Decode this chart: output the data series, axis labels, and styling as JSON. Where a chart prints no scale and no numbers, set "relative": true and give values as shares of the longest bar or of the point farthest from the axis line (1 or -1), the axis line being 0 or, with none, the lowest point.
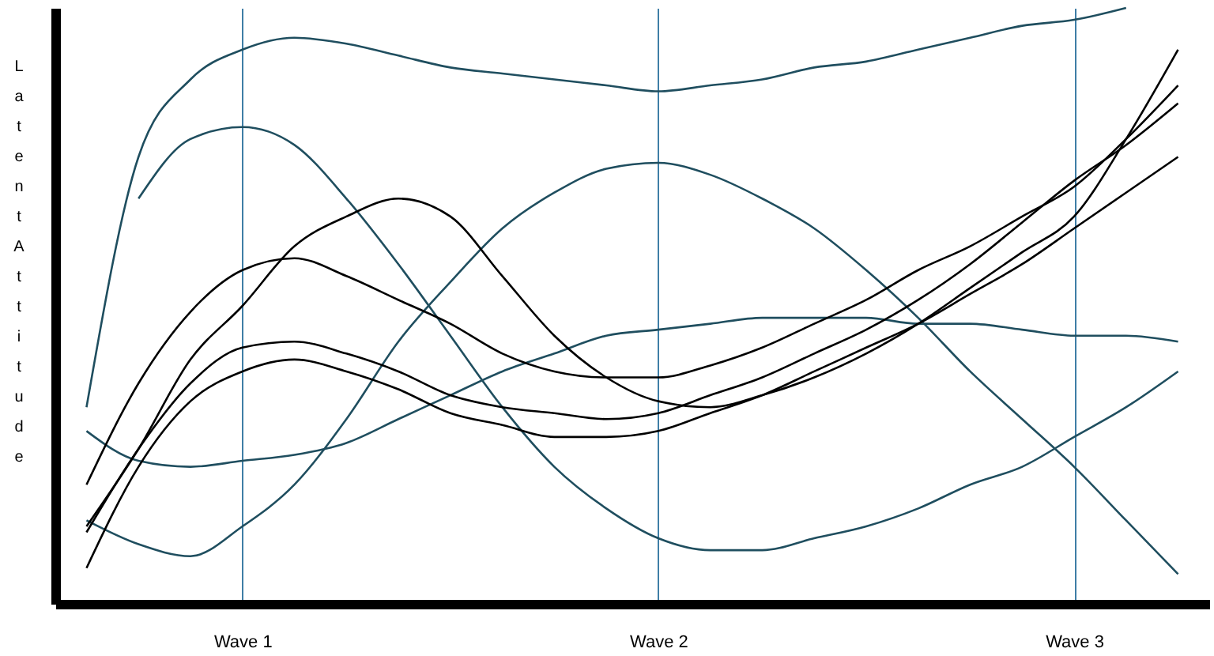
{
  "chart_data": {
    "type": "line",
    "relative": true,
    "ylabel": "Latent Attitude",
    "grid": "x",
    "marker": "none",
    "line_style": "solid",
    "categories": [
      null,
      null,
      null,
      "Wave 1",
      null,
      null,
      null,
      null,
      null,
      null,
      null,
      "Wave 2",
      null,
      null,
      null,
      null,
      null,
      null,
      null,
      "Wave 3",
      null,
      null
    ],
    "series": [
      {
        "color": "#1f4e5f",
        "values": [
          0.33,
          0.75,
          0.88,
          0.93,
          0.95,
          0.94,
          0.92,
          0.9,
          0.89,
          0.88,
          0.87,
          0.86,
          0.87,
          0.88,
          0.9,
          0.91,
          0.93,
          0.95,
          0.97,
          0.98,
          1.0,
          null
        ]
      },
      {
        "color": "#1f4e5f",
        "values": [
          null,
          0.68,
          0.78,
          0.8,
          0.77,
          0.68,
          0.57,
          0.45,
          0.33,
          0.23,
          0.16,
          0.11,
          0.09,
          0.09,
          0.11,
          0.13,
          0.16,
          0.2,
          0.23,
          0.28,
          0.33,
          0.39
        ]
      },
      {
        "color": "#1f4e5f",
        "values": [
          0.29,
          0.24,
          0.23,
          0.24,
          0.25,
          0.27,
          0.31,
          0.35,
          0.39,
          0.42,
          0.45,
          0.46,
          0.47,
          0.48,
          0.48,
          0.48,
          0.47,
          0.47,
          0.46,
          0.45,
          0.45,
          0.44
        ]
      },
      {
        "color": "#1f4e5f",
        "values": [
          0.14,
          0.1,
          0.08,
          0.13,
          0.2,
          0.31,
          0.44,
          0.54,
          0.63,
          0.69,
          0.73,
          0.74,
          0.72,
          0.68,
          0.63,
          0.56,
          0.48,
          0.39,
          0.31,
          0.23,
          0.14,
          0.05
        ]
      },
      {
        "color": "#000000",
        "values": [
          0.13,
          0.26,
          0.41,
          0.5,
          0.6,
          0.65,
          0.68,
          0.65,
          0.55,
          0.45,
          0.38,
          0.34,
          0.33,
          0.35,
          0.38,
          0.42,
          0.47,
          0.53,
          0.59,
          0.65,
          0.78,
          0.93
        ]
      },
      {
        "color": "#000000",
        "values": [
          0.2,
          0.37,
          0.49,
          0.56,
          0.58,
          0.55,
          0.51,
          0.47,
          0.42,
          0.39,
          0.38,
          0.38,
          0.4,
          0.43,
          0.47,
          0.51,
          0.56,
          0.6,
          0.65,
          0.7,
          0.78,
          0.87
        ]
      },
      {
        "color": "#000000",
        "values": [
          0.12,
          0.26,
          0.37,
          0.43,
          0.44,
          0.42,
          0.39,
          0.35,
          0.33,
          0.32,
          0.31,
          0.32,
          0.35,
          0.38,
          0.42,
          0.46,
          0.51,
          0.57,
          0.64,
          0.71,
          0.77,
          0.84
        ]
      },
      {
        "color": "#000000",
        "values": [
          0.06,
          0.23,
          0.34,
          0.39,
          0.41,
          0.39,
          0.36,
          0.32,
          0.3,
          0.28,
          0.28,
          0.29,
          0.32,
          0.35,
          0.39,
          0.43,
          0.47,
          0.52,
          0.57,
          0.63,
          0.69,
          0.75
        ]
      }
    ]
  }
}
